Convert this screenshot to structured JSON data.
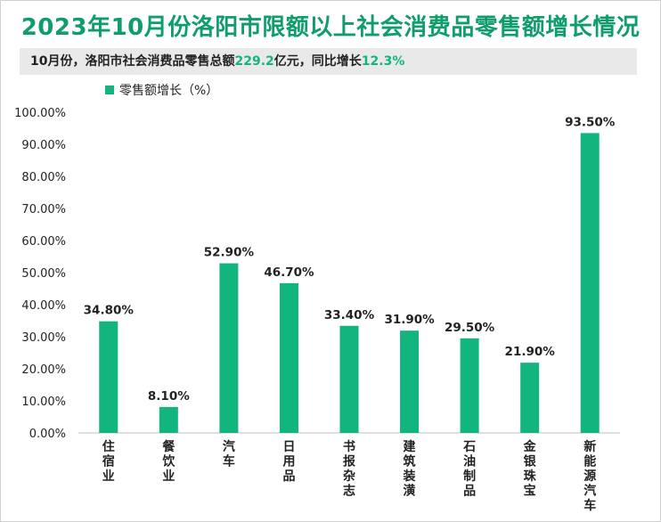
{
  "title": "2023年10月份洛阳市限额以上社会消费品零售额增长情况",
  "subtitle": {
    "prefix": "10月份，洛阳市社会消费品零售总额",
    "amount": "229.2",
    "middle": "亿元，同比增长",
    "growth": "12.3%"
  },
  "colors": {
    "bar": "#13b57e",
    "title": "#0f9d6b",
    "highlight": "#13b57e"
  },
  "chart_data": {
    "type": "bar",
    "title": "2023年10月份洛阳市限额以上社会消费品零售额增长情况",
    "categories": [
      "住宿业",
      "餐饮业",
      "汽车",
      "日用品",
      "书报杂志",
      "建筑装潢",
      "石油制品",
      "金银珠宝",
      "新能源汽车"
    ],
    "series": [
      {
        "name": "零售额增长（%）",
        "values": [
          34.8,
          8.1,
          52.9,
          46.7,
          33.4,
          31.9,
          29.5,
          21.9,
          93.5
        ]
      }
    ],
    "data_labels": [
      "34.80%",
      "8.10%",
      "52.90%",
      "46.70%",
      "33.40%",
      "31.90%",
      "29.50%",
      "21.90%",
      "93.50%"
    ],
    "yticks": [
      "0.00%",
      "10.00%",
      "20.00%",
      "30.00%",
      "40.00%",
      "50.00%",
      "60.00%",
      "70.00%",
      "80.00%",
      "90.00%",
      "100.00%"
    ],
    "ylim": [
      0,
      100
    ],
    "legend_position": "top-left",
    "grid": false
  }
}
